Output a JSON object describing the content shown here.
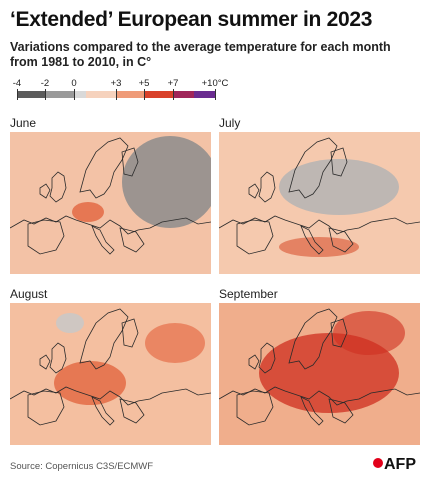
{
  "title": "‘Extended’ European summer in 2023",
  "subtitle": "Variations compared to the average temperature for each month from 1981 to 2010, in C°",
  "legend": {
    "ticks": [
      "-4",
      "-2",
      "0",
      "+3",
      "+5",
      "+7",
      "+10°C"
    ],
    "colors": [
      "#5c5c5c",
      "#9a9a9a",
      "#d9d9d9",
      "#f6d2bd",
      "#ef9b78",
      "#d9412a",
      "#a0265a",
      "#6a2c90"
    ]
  },
  "maps": [
    {
      "month": "June",
      "base": "#f3c2a6",
      "blob_color": "#8c8c8c",
      "hot_color": "#e2643f"
    },
    {
      "month": "July",
      "base": "#f5c9ae",
      "blob_color": "#b4b4b4",
      "hot_color": "#e07050"
    },
    {
      "month": "August",
      "base": "#f4bfa0",
      "blob_color": "#c8c8c8",
      "hot_color": "#e2603a"
    },
    {
      "month": "September",
      "base": "#f0ae8c",
      "blob_color": "#d8d8d8",
      "hot_color": "#cf2e1f"
    }
  ],
  "source": "Source: Copernicus C3S/ECMWF",
  "logo": "AFP"
}
